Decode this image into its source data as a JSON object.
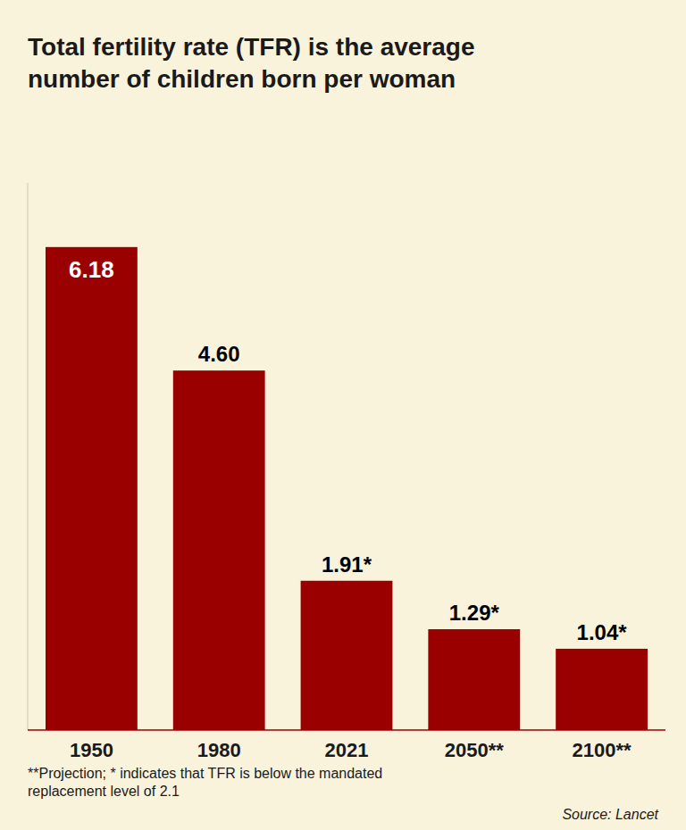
{
  "chart_data": {
    "type": "bar",
    "title": "Total fertility rate (TFR) is the average\nnumber of children born per woman",
    "categories": [
      "1950",
      "1980",
      "2021",
      "2050**",
      "2100**"
    ],
    "values": [
      6.18,
      4.6,
      1.91,
      1.29,
      1.04
    ],
    "value_labels": [
      "6.18",
      "4.60",
      "1.91*",
      "1.29*",
      "1.04*"
    ],
    "data_labels": true,
    "color": "#9B0000",
    "ylim": [
      0,
      7.0
    ],
    "grid": false,
    "tick_labels": "x",
    "annotations": [
      "**Projection; * indicates that TFR is below the mandated\nreplacement level of 2.1",
      "Source: Lancet"
    ]
  }
}
